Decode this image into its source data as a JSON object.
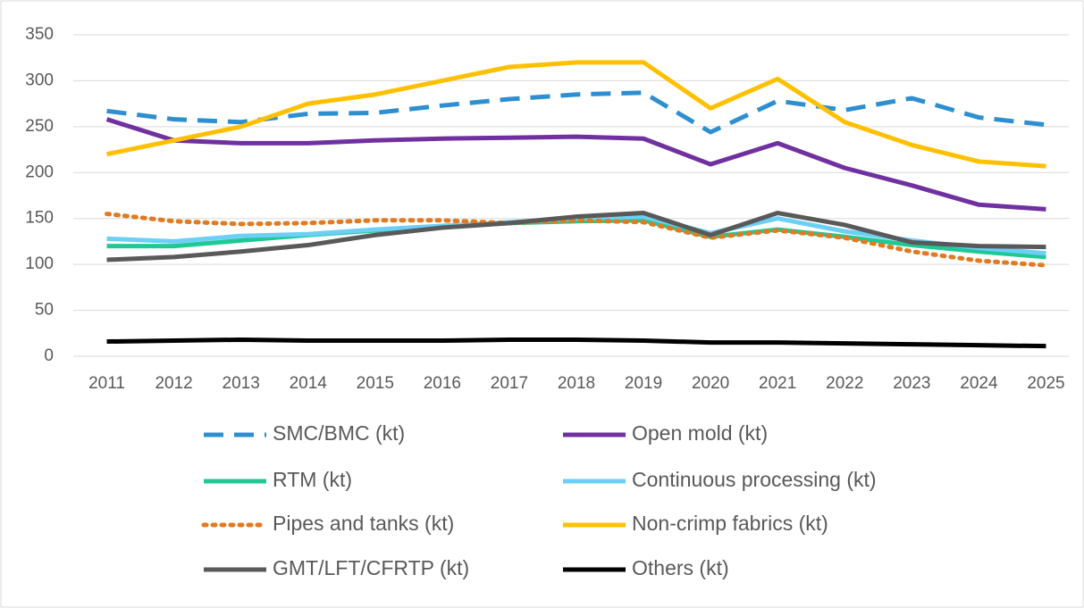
{
  "chart_data": {
    "type": "line",
    "categories": [
      "2011",
      "2012",
      "2013",
      "2014",
      "2015",
      "2016",
      "2017",
      "2018",
      "2019",
      "2020",
      "2021",
      "2022",
      "2023",
      "2024",
      "2025"
    ],
    "ylim": [
      0,
      350
    ],
    "yticks": [
      0,
      50,
      100,
      150,
      200,
      250,
      300,
      350
    ],
    "grid": true,
    "legend": "bottom",
    "series": [
      {
        "name": "SMC/BMC (kt)",
        "color": "#2e8fd0",
        "style": "dash",
        "values": [
          267,
          258,
          255,
          264,
          265,
          273,
          280,
          285,
          287,
          244,
          278,
          268,
          281,
          260,
          252
        ]
      },
      {
        "name": "Open mold (kt)",
        "color": "#7030a0",
        "style": "solid",
        "values": [
          258,
          235,
          232,
          232,
          235,
          237,
          238,
          239,
          237,
          209,
          232,
          205,
          186,
          165,
          160
        ]
      },
      {
        "name": "RTM (kt)",
        "color": "#1fc995",
        "style": "solid",
        "values": [
          120,
          120,
          126,
          132,
          137,
          141,
          145,
          147,
          148,
          130,
          138,
          130,
          121,
          114,
          108
        ]
      },
      {
        "name": "Continuous processing (kt)",
        "color": "#6ccff6",
        "style": "solid",
        "values": [
          128,
          125,
          131,
          133,
          138,
          142,
          146,
          150,
          152,
          134,
          150,
          136,
          126,
          118,
          112
        ]
      },
      {
        "name": "Pipes and tanks (kt)",
        "color": "#e07b22",
        "style": "dot",
        "values": [
          155,
          147,
          144,
          145,
          148,
          148,
          145,
          148,
          146,
          129,
          137,
          129,
          114,
          104,
          99
        ]
      },
      {
        "name": "Non-crimp fabrics (kt)",
        "color": "#ffc000",
        "style": "solid",
        "values": [
          220,
          235,
          250,
          275,
          285,
          300,
          315,
          320,
          320,
          270,
          302,
          255,
          230,
          212,
          207
        ]
      },
      {
        "name": "GMT/LFT/CFRTP (kt)",
        "color": "#595959",
        "style": "solid",
        "values": [
          105,
          108,
          114,
          121,
          132,
          140,
          145,
          152,
          156,
          132,
          156,
          143,
          124,
          120,
          119
        ]
      },
      {
        "name": "Others (kt)",
        "color": "#000000",
        "style": "solid",
        "values": [
          16,
          17,
          18,
          17,
          17,
          17,
          18,
          18,
          17,
          15,
          15,
          14,
          13,
          12,
          11
        ]
      }
    ]
  }
}
